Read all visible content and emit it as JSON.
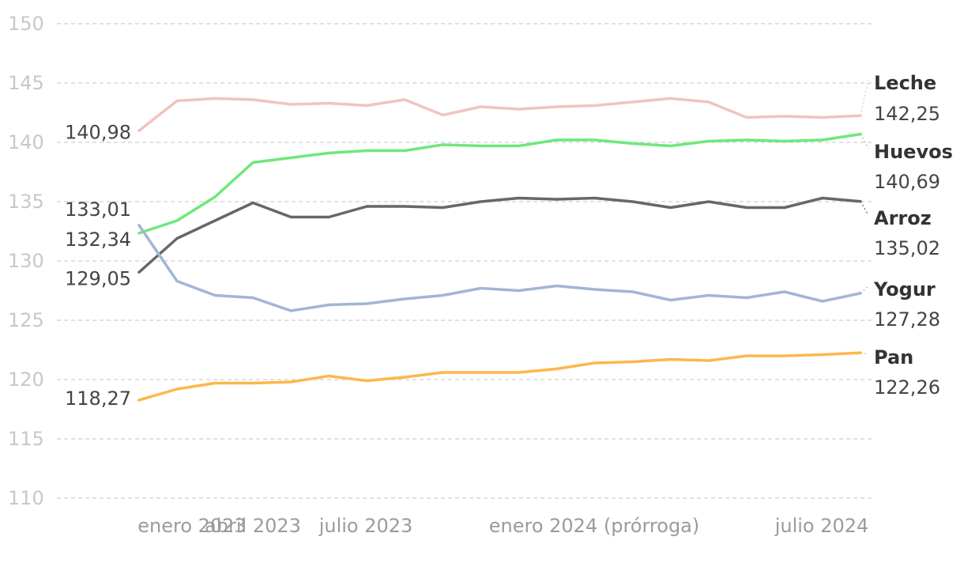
{
  "chart_data": {
    "type": "line",
    "title": "",
    "xlabel": "",
    "ylabel": "",
    "ylim": [
      110,
      150
    ],
    "yticks": [
      150,
      145,
      140,
      135,
      130,
      125,
      120,
      115,
      110
    ],
    "x_count": 20,
    "x_tick_labels": [
      {
        "index": 0,
        "label": "enero 2023"
      },
      {
        "index": 3,
        "label": "abril 2023"
      },
      {
        "index": 6,
        "label": "julio 2023"
      },
      {
        "index": 12,
        "label": "enero 2024 (prórroga)"
      },
      {
        "index": 18,
        "label": "julio 2024"
      }
    ],
    "series": [
      {
        "name": "Leche",
        "color": "#f0c4c0",
        "start_label": "140,98",
        "end_label": "142,25",
        "values": [
          140.98,
          143.5,
          143.7,
          143.6,
          143.2,
          143.3,
          143.1,
          143.6,
          142.3,
          143.0,
          142.8,
          143.0,
          143.1,
          143.4,
          143.7,
          143.4,
          142.1,
          142.2,
          142.1,
          142.25
        ]
      },
      {
        "name": "Huevos",
        "color": "#6ee87a",
        "start_label": "132,34",
        "end_label": "140,69",
        "values": [
          132.34,
          133.4,
          135.4,
          138.3,
          138.7,
          139.1,
          139.3,
          139.3,
          139.8,
          139.7,
          139.7,
          140.2,
          140.2,
          139.9,
          139.7,
          140.1,
          140.2,
          140.1,
          140.2,
          140.69
        ]
      },
      {
        "name": "Arroz",
        "color": "#6a6567",
        "start_label": "129,05",
        "end_label": "135,02",
        "values": [
          129.05,
          131.9,
          133.4,
          134.9,
          133.7,
          133.7,
          134.6,
          134.6,
          134.5,
          135.0,
          135.3,
          135.2,
          135.3,
          135.0,
          134.5,
          135.0,
          134.5,
          134.5,
          135.3,
          135.02
        ]
      },
      {
        "name": "Yogur",
        "color": "#a3b5d6",
        "start_label": "133,01",
        "end_label": "127,28",
        "values": [
          133.01,
          128.3,
          127.1,
          126.9,
          125.8,
          126.3,
          126.4,
          126.8,
          127.1,
          127.7,
          127.5,
          127.9,
          127.6,
          127.4,
          126.7,
          127.1,
          126.9,
          127.4,
          126.6,
          127.28
        ]
      },
      {
        "name": "Pan",
        "color": "#fdb74a",
        "start_label": "118,27",
        "end_label": "122,26",
        "values": [
          118.27,
          119.2,
          119.7,
          119.7,
          119.8,
          120.3,
          119.9,
          120.2,
          120.6,
          120.6,
          120.6,
          120.9,
          121.4,
          121.5,
          121.7,
          121.6,
          122.0,
          122.0,
          122.1,
          122.26
        ]
      }
    ]
  }
}
